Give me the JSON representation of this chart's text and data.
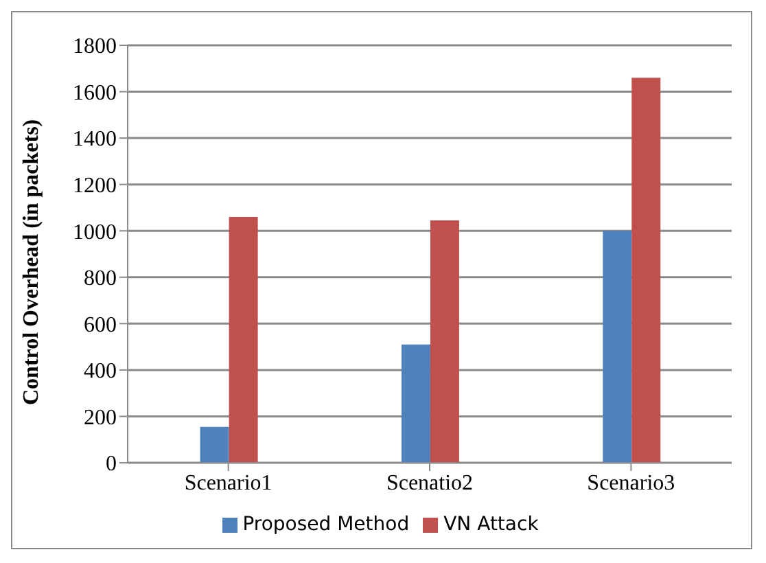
{
  "chart_data": {
    "type": "bar",
    "ylabel": "Control Overhead  (in packets)",
    "categories": [
      "Scenario1",
      "Scenatio2",
      "Scenario3"
    ],
    "series": [
      {
        "name": "Proposed Method",
        "color": "#4f81bd",
        "values": [
          155,
          510,
          1000
        ]
      },
      {
        "name": "VN Attack",
        "color": "#c0504d",
        "values": [
          1060,
          1045,
          1660
        ]
      }
    ],
    "ylim": [
      0,
      1800
    ],
    "yticks": [
      0,
      200,
      400,
      600,
      800,
      1000,
      1200,
      1400,
      1600,
      1800
    ],
    "grid": "y",
    "legend": "bottom"
  }
}
